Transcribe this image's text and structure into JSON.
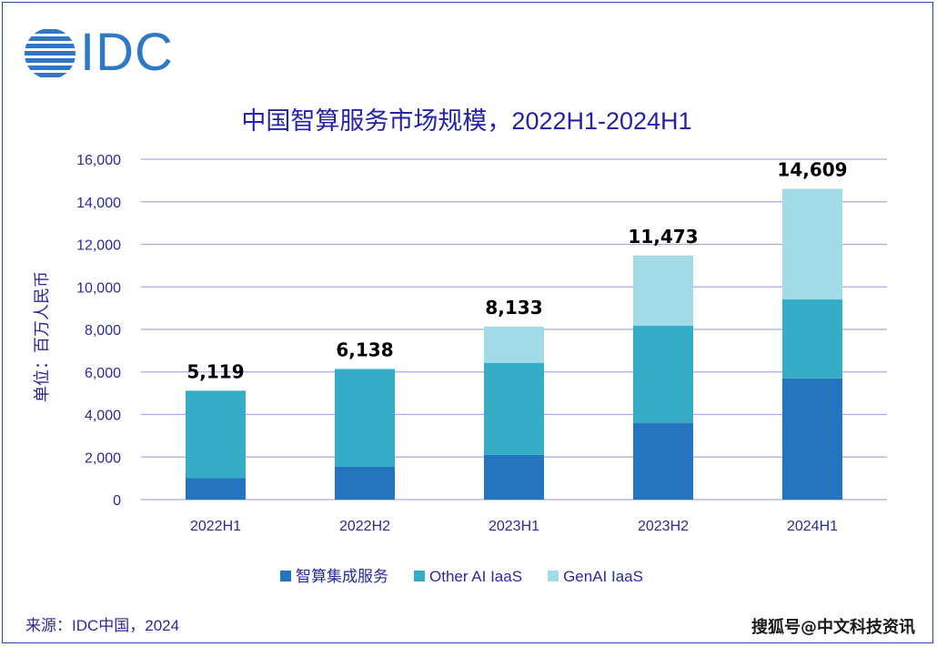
{
  "logo_text": "IDC",
  "chart_data": {
    "type": "bar",
    "stacked": true,
    "title": "中国智算服务市场规模，2022H1-2024H1",
    "ylabel": "单位：百万人民币",
    "xlabel": "",
    "ylim": [
      0,
      16000
    ],
    "yticks": [
      "0",
      "2,000",
      "4,000",
      "6,000",
      "8,000",
      "10,000",
      "12,000",
      "14,000",
      "16,000"
    ],
    "categories": [
      "2022H1",
      "2022H2",
      "2023H1",
      "2023H2",
      "2024H1"
    ],
    "series": [
      {
        "name": "智算集成服务",
        "color": "#2475bd",
        "values": [
          1020,
          1540,
          2100,
          3610,
          5700
        ]
      },
      {
        "name": "Other AI IaaS",
        "color": "#35adc6",
        "values": [
          4099,
          4598,
          4330,
          4560,
          3710
        ]
      },
      {
        "name": "GenAI IaaS",
        "color": "#a2dae6",
        "values": [
          0,
          0,
          1703,
          3303,
          5199
        ]
      }
    ],
    "totals": [
      "5,119",
      "6,138",
      "8,133",
      "11,473",
      "14,609"
    ],
    "total_values": [
      5119,
      6138,
      8133,
      11473,
      14609
    ],
    "grid": true,
    "legend_position": "bottom"
  },
  "source": "来源：IDC中国，2024",
  "watermark": "搜狐号@中文科技资讯"
}
